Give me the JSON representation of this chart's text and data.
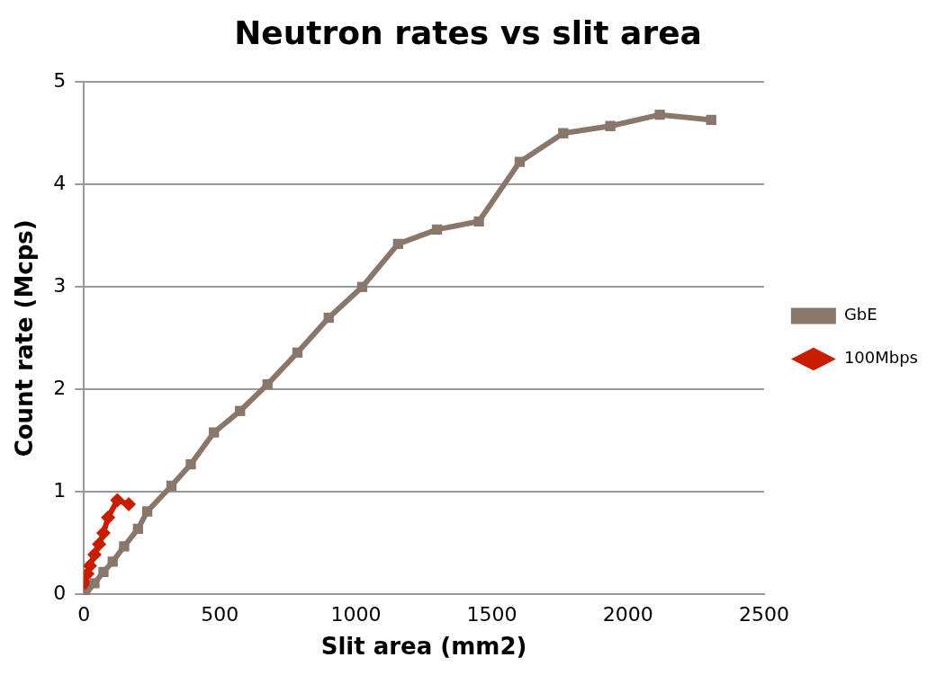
{
  "chart_data": {
    "type": "line",
    "title": "Neutron rates vs slit area",
    "xlabel": "Slit area (mm2)",
    "ylabel": "Count rate (Mcps)",
    "xlim": [
      0,
      2500
    ],
    "xticks": [
      0,
      500,
      1000,
      1500,
      2000,
      2500
    ],
    "ylim": [
      0,
      5
    ],
    "yticks": [
      0,
      1,
      2,
      3,
      4,
      5
    ],
    "grid": "y",
    "legend": "right",
    "series": [
      {
        "name": "GbE",
        "color": "#8a776b",
        "marker": "square",
        "x": [
          5,
          39,
          72,
          106,
          148,
          199,
          233,
          322,
          393,
          478,
          574,
          675,
          785,
          900,
          1023,
          1155,
          1298,
          1452,
          1602,
          1762,
          1935,
          2117,
          2306
        ],
        "values": [
          0,
          0.11,
          0.22,
          0.32,
          0.47,
          0.64,
          0.81,
          1.06,
          1.27,
          1.58,
          1.79,
          2.05,
          2.36,
          2.7,
          3.0,
          3.42,
          3.56,
          3.64,
          4.22,
          4.5,
          4.57,
          4.68,
          4.63
        ]
      },
      {
        "name": "100Mbps",
        "color": "#c81e00",
        "marker": "diamond",
        "x": [
          0,
          5,
          13,
          22,
          39,
          56,
          72,
          89,
          123,
          165
        ],
        "values": [
          0.03,
          0.11,
          0.2,
          0.28,
          0.39,
          0.49,
          0.6,
          0.75,
          0.92,
          0.88
        ]
      }
    ]
  }
}
